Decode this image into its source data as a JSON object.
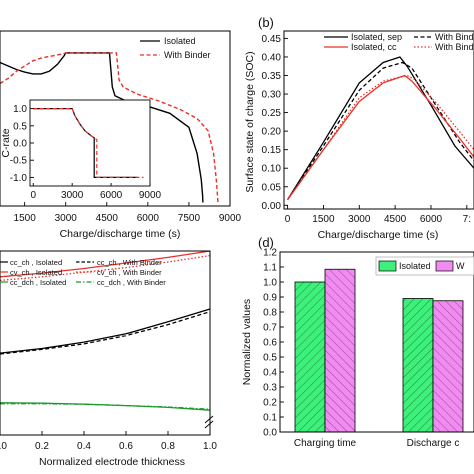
{
  "chart_data": [
    {
      "id": "a",
      "type": "line",
      "panel_label": "",
      "xlabel": "Charge/discharge time (s)",
      "ylabel": "",
      "xlim": [
        600,
        9000
      ],
      "ylim": [
        0,
        1
      ],
      "xticks": [
        1500,
        3000,
        4500,
        6000,
        7500,
        9000
      ],
      "xtick_labels": [
        "1500",
        "3000",
        "4500",
        "6000",
        "7500",
        "9000"
      ],
      "legend_position": "top-right",
      "series": [
        {
          "name": "Isolated",
          "color": "#000000",
          "dash": "solid",
          "x": [
            600,
            900,
            1200,
            1500,
            1800,
            2100,
            2400,
            2700,
            2950,
            3000,
            3100,
            4600,
            4700,
            4800,
            5200,
            6000,
            6800,
            7500,
            7800,
            7950,
            8000,
            8010
          ],
          "y": [
            0.82,
            0.8,
            0.78,
            0.765,
            0.755,
            0.755,
            0.77,
            0.81,
            0.86,
            0.875,
            0.875,
            0.875,
            0.68,
            0.63,
            0.6,
            0.57,
            0.53,
            0.45,
            0.3,
            0.15,
            0.06,
            0.02
          ]
        },
        {
          "name": "With Binder",
          "color": "#e8312a",
          "dash": "dashed",
          "x": [
            600,
            900,
            1200,
            1500,
            1800,
            2100,
            2400,
            2600,
            2750,
            2900,
            3000,
            4850,
            4950,
            5100,
            5600,
            6400,
            7200,
            7800,
            8200,
            8400,
            8500,
            8560
          ],
          "y": [
            0.7,
            0.73,
            0.77,
            0.8,
            0.83,
            0.845,
            0.855,
            0.86,
            0.865,
            0.87,
            0.875,
            0.875,
            0.72,
            0.68,
            0.64,
            0.6,
            0.55,
            0.5,
            0.43,
            0.3,
            0.15,
            0.02
          ]
        }
      ],
      "inset": {
        "ylabel": "C-rate",
        "xlim": [
          -250,
          9000
        ],
        "ylim": [
          -1.25,
          1.25
        ],
        "xticks": [
          0,
          3000,
          6000,
          9000
        ],
        "xtick_labels": [
          "0",
          "3000",
          "6000",
          "9000"
        ],
        "yticks": [
          -1.0,
          -0.5,
          0.0,
          0.5,
          1.0
        ],
        "ytick_labels": [
          "-1.0",
          "-0.5",
          "0.0",
          "0.5",
          "1.0"
        ],
        "series": [
          {
            "name": "Isolated",
            "color": "#000000",
            "dash": "solid",
            "x": [
              0,
              3000,
              3200,
              3600,
              4000,
              4500,
              4700,
              4700,
              8000
            ],
            "y": [
              1.0,
              1.0,
              0.8,
              0.55,
              0.35,
              0.2,
              0.15,
              -1.0,
              -1.0
            ]
          },
          {
            "name": "With Binder",
            "color": "#e8312a",
            "dash": "dashed",
            "x": [
              0,
              3000,
              3200,
              3600,
              4000,
              4500,
              4900,
              4900,
              8500
            ],
            "y": [
              1.0,
              1.0,
              0.8,
              0.55,
              0.35,
              0.2,
              0.1,
              -1.0,
              -1.0
            ]
          }
        ]
      }
    },
    {
      "id": "b",
      "type": "line",
      "panel_label": "(b)",
      "xlabel": "Charge/discharge time (s)",
      "ylabel": "Surface state of charge (SOC)",
      "xlim": [
        -150,
        7800
      ],
      "ylim": [
        -0.01,
        0.47
      ],
      "xticks": [
        0,
        1500,
        3000,
        4500,
        6000,
        7500
      ],
      "xtick_labels": [
        "0",
        "1500",
        "3000",
        "4500",
        "6000",
        "7:"
      ],
      "yticks": [
        0.0,
        0.05,
        0.1,
        0.15,
        0.2,
        0.25,
        0.3,
        0.35,
        0.4,
        0.45
      ],
      "ytick_labels": [
        "0.00",
        "0.05",
        "0.10",
        "0.15",
        "0.20",
        "0.25",
        "0.30",
        "0.35",
        "0.40",
        "0.45"
      ],
      "legend_position": "top-right",
      "series": [
        {
          "name": "Isolated, sep",
          "color": "#000000",
          "dash": "solid",
          "x": [
            0,
            1500,
            3000,
            4000,
            4700,
            5000,
            6000,
            7000,
            7800
          ],
          "y": [
            0.015,
            0.17,
            0.33,
            0.385,
            0.4,
            0.375,
            0.27,
            0.16,
            0.1
          ]
        },
        {
          "name": "With Binder",
          "color": "#000000",
          "dash": "dashed",
          "x": [
            0,
            1500,
            3000,
            4000,
            4800,
            5200,
            6200,
            7200,
            7800
          ],
          "y": [
            0.015,
            0.16,
            0.31,
            0.37,
            0.385,
            0.37,
            0.27,
            0.17,
            0.12
          ]
        },
        {
          "name": "Isolated, cc",
          "color": "#e8312a",
          "dash": "solid",
          "x": [
            0,
            1500,
            3000,
            4000,
            4900,
            5200,
            6200,
            7200,
            7800
          ],
          "y": [
            0.015,
            0.15,
            0.28,
            0.33,
            0.35,
            0.335,
            0.26,
            0.18,
            0.13
          ]
        },
        {
          "name": "With Binder",
          "color": "#e8312a",
          "dash": "dotted",
          "x": [
            0,
            1500,
            3000,
            4000,
            5000,
            5300,
            6300,
            7300,
            7800
          ],
          "y": [
            0.015,
            0.15,
            0.29,
            0.335,
            0.35,
            0.34,
            0.27,
            0.19,
            0.15
          ]
        }
      ]
    },
    {
      "id": "c",
      "type": "line",
      "panel_label": "",
      "xlabel": "Normalized electrode thickness",
      "ylabel": "",
      "xlim": [
        0,
        1.0
      ],
      "ylim": [
        0,
        1
      ],
      "xticks": [
        0.0,
        0.2,
        0.4,
        0.6,
        0.8,
        1.0
      ],
      "xtick_labels": [
        "0.0",
        "0.2",
        "0.4",
        "0.6",
        "0.8",
        "1.0"
      ],
      "legend_position": "top-left",
      "series": [
        {
          "name": "cc_ch , Isolated",
          "color": "#000000",
          "dash": "solid",
          "x": [
            0,
            0.2,
            0.4,
            0.6,
            0.8,
            1.0
          ],
          "y": [
            0.445,
            0.47,
            0.505,
            0.55,
            0.615,
            0.685
          ]
        },
        {
          "name": "cc_ch , With Binder",
          "color": "#000000",
          "dash": "dashed",
          "x": [
            0,
            0.2,
            0.4,
            0.6,
            0.8,
            1.0
          ],
          "y": [
            0.44,
            0.465,
            0.495,
            0.54,
            0.6,
            0.67
          ]
        },
        {
          "name": "cv_ch , Isolated",
          "color": "#e8312a",
          "dash": "solid",
          "x": [
            0,
            0.2,
            0.4,
            0.6,
            0.8,
            1.0
          ],
          "y": [
            0.86,
            0.88,
            0.905,
            0.935,
            0.965,
            1.0
          ]
        },
        {
          "name": "cv_ch , With Binder",
          "color": "#e8312a",
          "dash": "dotted",
          "x": [
            0,
            0.2,
            0.4,
            0.6,
            0.8,
            1.0
          ],
          "y": [
            0.84,
            0.86,
            0.885,
            0.91,
            0.94,
            0.975
          ]
        },
        {
          "name": "cc_dch , Isolated",
          "color": "#1a9a2e",
          "dash": "solid",
          "x": [
            0,
            0.2,
            0.4,
            0.6,
            0.8,
            1.0
          ],
          "y": [
            0.175,
            0.173,
            0.168,
            0.16,
            0.15,
            0.135
          ]
        },
        {
          "name": "cc_dch , With Binder",
          "color": "#1a9a2e",
          "dash": "dashdot",
          "x": [
            0,
            0.2,
            0.4,
            0.6,
            0.8,
            1.0
          ],
          "y": [
            0.17,
            0.17,
            0.167,
            0.16,
            0.152,
            0.14
          ]
        }
      ]
    },
    {
      "id": "d",
      "type": "bar",
      "panel_label": "(d)",
      "xlabel": "",
      "ylabel": "Normalized values",
      "ylim": [
        0,
        1.2
      ],
      "yticks": [
        0.0,
        0.1,
        0.2,
        0.3,
        0.4,
        0.5,
        0.6,
        0.7,
        0.8,
        0.9,
        1.0,
        1.1,
        1.2
      ],
      "ytick_labels": [
        "0.0",
        "0.1",
        "0.2",
        "0.3",
        "0.4",
        "0.5",
        "0.6",
        "0.7",
        "0.8",
        "0.9",
        "1.0",
        "1.1",
        "1.2"
      ],
      "categories": [
        "Charging time",
        "Discharge c"
      ],
      "legend_position": "top-right",
      "series": [
        {
          "name": "Isolated",
          "color": "#3cf07a",
          "values": [
            1.0,
            0.89
          ]
        },
        {
          "name": "W",
          "color": "#f08cf0",
          "values": [
            1.085,
            0.875
          ]
        }
      ]
    }
  ]
}
